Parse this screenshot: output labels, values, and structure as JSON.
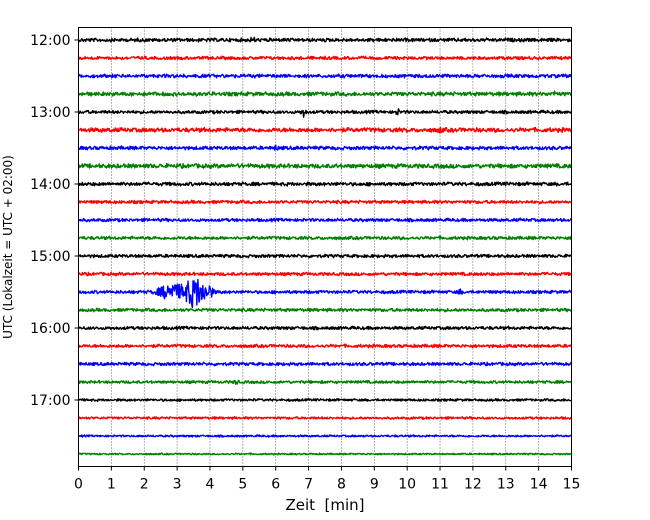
{
  "chart_data": {
    "type": "line",
    "subtype": "helicorder",
    "xlabel": "Zeit  [min]",
    "ylabel": "UTC (Lokalzeit = UTC + 02:00)",
    "xlim": [
      0,
      15
    ],
    "x_ticks": [
      0,
      1,
      2,
      3,
      4,
      5,
      6,
      7,
      8,
      9,
      10,
      11,
      12,
      13,
      14,
      15
    ],
    "x_tick_labels": [
      "0",
      "1",
      "2",
      "3",
      "4",
      "5",
      "6",
      "7",
      "8",
      "9",
      "10",
      "11",
      "12",
      "13",
      "14",
      "15"
    ],
    "y_tick_labels": [
      "12:00",
      "13:00",
      "14:00",
      "15:00",
      "16:00",
      "17:00"
    ],
    "x_grid": "dotted vertical gridlines at every minute",
    "trace_color_cycle": [
      "#000000",
      "#ff0000",
      "#0000ff",
      "#008000"
    ],
    "traces": [
      {
        "start": "12:00",
        "color": "#000000",
        "amplitude": 0.9,
        "events": [
          {
            "x": 5.3,
            "amp": 1.4
          }
        ]
      },
      {
        "start": "12:15",
        "color": "#ff0000",
        "amplitude": 0.8,
        "events": []
      },
      {
        "start": "12:30",
        "color": "#0000ff",
        "amplitude": 0.9,
        "events": []
      },
      {
        "start": "12:45",
        "color": "#008000",
        "amplitude": 1.0,
        "events": [
          {
            "x": 14.5,
            "amp": 1.2
          }
        ]
      },
      {
        "start": "13:00",
        "color": "#000000",
        "amplitude": 0.8,
        "events": [
          {
            "x": 6.85,
            "amp": 2.5
          },
          {
            "x": 9.7,
            "amp": 1.6
          }
        ]
      },
      {
        "start": "13:15",
        "color": "#ff0000",
        "amplitude": 1.1,
        "events": [
          {
            "x": 11.0,
            "amp": 1.2
          }
        ]
      },
      {
        "start": "13:30",
        "color": "#0000ff",
        "amplitude": 0.9,
        "events": [
          {
            "x": 6.0,
            "amp": 1.2
          }
        ]
      },
      {
        "start": "13:45",
        "color": "#008000",
        "amplitude": 1.1,
        "events": []
      },
      {
        "start": "14:00",
        "color": "#000000",
        "amplitude": 0.9,
        "events": []
      },
      {
        "start": "14:15",
        "color": "#ff0000",
        "amplitude": 0.8,
        "events": []
      },
      {
        "start": "14:30",
        "color": "#0000ff",
        "amplitude": 0.8,
        "events": []
      },
      {
        "start": "14:45",
        "color": "#008000",
        "amplitude": 0.8,
        "events": []
      },
      {
        "start": "15:00",
        "color": "#000000",
        "amplitude": 0.8,
        "events": []
      },
      {
        "start": "15:15",
        "color": "#ff0000",
        "amplitude": 0.8,
        "events": []
      },
      {
        "start": "15:30",
        "color": "#0000ff",
        "amplitude": 0.8,
        "events": [
          {
            "x": 2.8,
            "amp": 4.5
          },
          {
            "x": 3.55,
            "amp": 9.0
          },
          {
            "x": 4.0,
            "amp": 3.0
          },
          {
            "x": 11.6,
            "amp": 1.3
          }
        ]
      },
      {
        "start": "15:45",
        "color": "#008000",
        "amplitude": 0.8,
        "events": []
      },
      {
        "start": "16:00",
        "color": "#000000",
        "amplitude": 0.8,
        "events": []
      },
      {
        "start": "16:15",
        "color": "#ff0000",
        "amplitude": 0.8,
        "events": []
      },
      {
        "start": "16:30",
        "color": "#0000ff",
        "amplitude": 0.8,
        "events": []
      },
      {
        "start": "16:45",
        "color": "#008000",
        "amplitude": 0.7,
        "events": [
          {
            "x": 4.8,
            "amp": 1.2
          }
        ]
      },
      {
        "start": "17:00",
        "color": "#000000",
        "amplitude": 0.6,
        "events": []
      },
      {
        "start": "17:15",
        "color": "#ff0000",
        "amplitude": 0.6,
        "events": []
      },
      {
        "start": "17:30",
        "color": "#0000ff",
        "amplitude": 0.5,
        "events": []
      },
      {
        "start": "17:45",
        "color": "#008000",
        "amplitude": 0.4,
        "events": []
      }
    ]
  }
}
